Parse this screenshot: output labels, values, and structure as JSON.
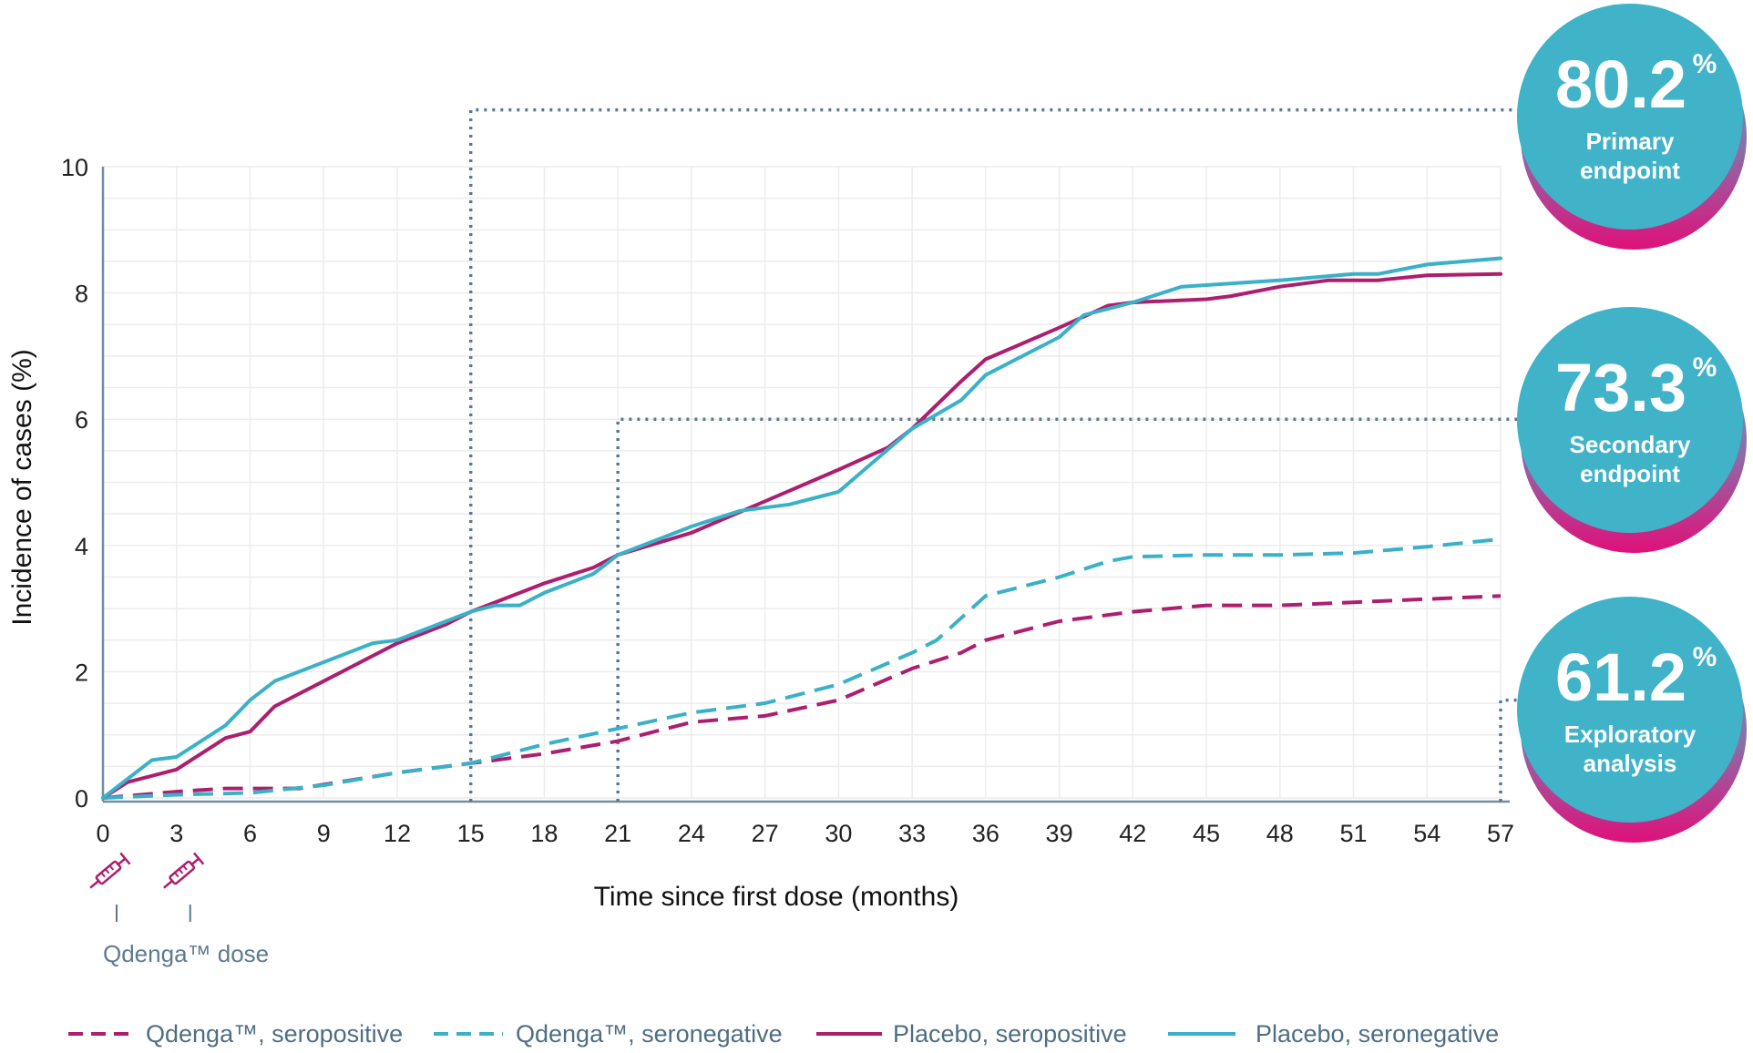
{
  "chart_data": {
    "type": "line",
    "xlabel": "Time since first dose (months)",
    "ylabel": "Incidence of cases (%)",
    "xlim": [
      0,
      57
    ],
    "ylim": [
      0,
      10
    ],
    "x_ticks": [
      "0",
      "3",
      "6",
      "9",
      "12",
      "15",
      "18",
      "21",
      "24",
      "27",
      "30",
      "33",
      "36",
      "39",
      "42",
      "45",
      "48",
      "51",
      "54",
      "57"
    ],
    "y_ticks": [
      "0",
      "2",
      "4",
      "6",
      "8",
      "10"
    ],
    "grid": true,
    "series": [
      {
        "name": "Qdenga™, seropositive",
        "style": "dashed",
        "color": "#ad1e6e",
        "points": [
          [
            0,
            0
          ],
          [
            3,
            0.1
          ],
          [
            5,
            0.15
          ],
          [
            8,
            0.15
          ],
          [
            12,
            0.4
          ],
          [
            15,
            0.55
          ],
          [
            18,
            0.7
          ],
          [
            21,
            0.9
          ],
          [
            24,
            1.2
          ],
          [
            27,
            1.3
          ],
          [
            30,
            1.55
          ],
          [
            33,
            2.05
          ],
          [
            35,
            2.3
          ],
          [
            36,
            2.5
          ],
          [
            39,
            2.8
          ],
          [
            42,
            2.95
          ],
          [
            45,
            3.05
          ],
          [
            48,
            3.05
          ],
          [
            51,
            3.1
          ],
          [
            54,
            3.15
          ],
          [
            57,
            3.2
          ]
        ]
      },
      {
        "name": "Qdenga™, seronegative",
        "style": "dashed",
        "color": "#3ab1c8",
        "points": [
          [
            0,
            0
          ],
          [
            3,
            0.05
          ],
          [
            6,
            0.08
          ],
          [
            9,
            0.2
          ],
          [
            12,
            0.4
          ],
          [
            15,
            0.55
          ],
          [
            18,
            0.85
          ],
          [
            21,
            1.1
          ],
          [
            24,
            1.35
          ],
          [
            27,
            1.5
          ],
          [
            30,
            1.8
          ],
          [
            33,
            2.3
          ],
          [
            34,
            2.5
          ],
          [
            35,
            2.85
          ],
          [
            36,
            3.2
          ],
          [
            39,
            3.5
          ],
          [
            41,
            3.75
          ],
          [
            42,
            3.82
          ],
          [
            45,
            3.85
          ],
          [
            48,
            3.85
          ],
          [
            51,
            3.88
          ],
          [
            54,
            3.98
          ],
          [
            57,
            4.1
          ]
        ]
      },
      {
        "name": "Placebo, seropositive",
        "style": "solid",
        "color": "#ad1e6e",
        "points": [
          [
            0,
            0
          ],
          [
            1,
            0.25
          ],
          [
            3,
            0.45
          ],
          [
            5,
            0.95
          ],
          [
            6,
            1.05
          ],
          [
            7,
            1.45
          ],
          [
            9,
            1.85
          ],
          [
            12,
            2.45
          ],
          [
            14,
            2.75
          ],
          [
            15,
            2.95
          ],
          [
            18,
            3.4
          ],
          [
            20,
            3.65
          ],
          [
            21,
            3.85
          ],
          [
            24,
            4.2
          ],
          [
            27,
            4.7
          ],
          [
            30,
            5.2
          ],
          [
            32,
            5.55
          ],
          [
            33,
            5.85
          ],
          [
            35,
            6.6
          ],
          [
            36,
            6.95
          ],
          [
            39,
            7.45
          ],
          [
            41,
            7.8
          ],
          [
            42,
            7.85
          ],
          [
            45,
            7.9
          ],
          [
            46,
            7.95
          ],
          [
            48,
            8.1
          ],
          [
            50,
            8.2
          ],
          [
            52,
            8.2
          ],
          [
            54,
            8.28
          ],
          [
            57,
            8.3
          ]
        ]
      },
      {
        "name": "Placebo, seronegative",
        "style": "solid",
        "color": "#3ab1c8",
        "points": [
          [
            0,
            0
          ],
          [
            1,
            0.3
          ],
          [
            2,
            0.6
          ],
          [
            3,
            0.65
          ],
          [
            5,
            1.15
          ],
          [
            6,
            1.55
          ],
          [
            7,
            1.85
          ],
          [
            9,
            2.15
          ],
          [
            11,
            2.45
          ],
          [
            12,
            2.5
          ],
          [
            15,
            2.95
          ],
          [
            16,
            3.05
          ],
          [
            17,
            3.05
          ],
          [
            18,
            3.25
          ],
          [
            20,
            3.55
          ],
          [
            21,
            3.85
          ],
          [
            24,
            4.3
          ],
          [
            26,
            4.55
          ],
          [
            28,
            4.65
          ],
          [
            30,
            4.85
          ],
          [
            33,
            5.85
          ],
          [
            35,
            6.3
          ],
          [
            36,
            6.7
          ],
          [
            39,
            7.3
          ],
          [
            40,
            7.65
          ],
          [
            42,
            7.85
          ],
          [
            44,
            8.1
          ],
          [
            48,
            8.2
          ],
          [
            51,
            8.3
          ],
          [
            52,
            8.3
          ],
          [
            54,
            8.45
          ],
          [
            57,
            8.55
          ]
        ]
      }
    ],
    "reference_lines": [
      {
        "x": 15,
        "y": 10.9
      },
      {
        "x": 21,
        "y": 6.0
      },
      {
        "x": 57,
        "y": 1.55
      }
    ]
  },
  "badges": [
    {
      "value": "80.2",
      "unit": "%",
      "line1": "Primary",
      "line2": "endpoint"
    },
    {
      "value": "73.3",
      "unit": "%",
      "line1": "Secondary",
      "line2": "endpoint"
    },
    {
      "value": "61.2",
      "unit": "%",
      "line1": "Exploratory",
      "line2": "analysis"
    }
  ],
  "dose_label": "Qdenga™ dose",
  "dose_months": [
    0,
    3
  ],
  "colors": {
    "magenta": "#ad1e6e",
    "teal": "#3ab1c8",
    "ref": "#5a7a8f",
    "axis": "#6f8ea3",
    "grid": "#ececec"
  }
}
